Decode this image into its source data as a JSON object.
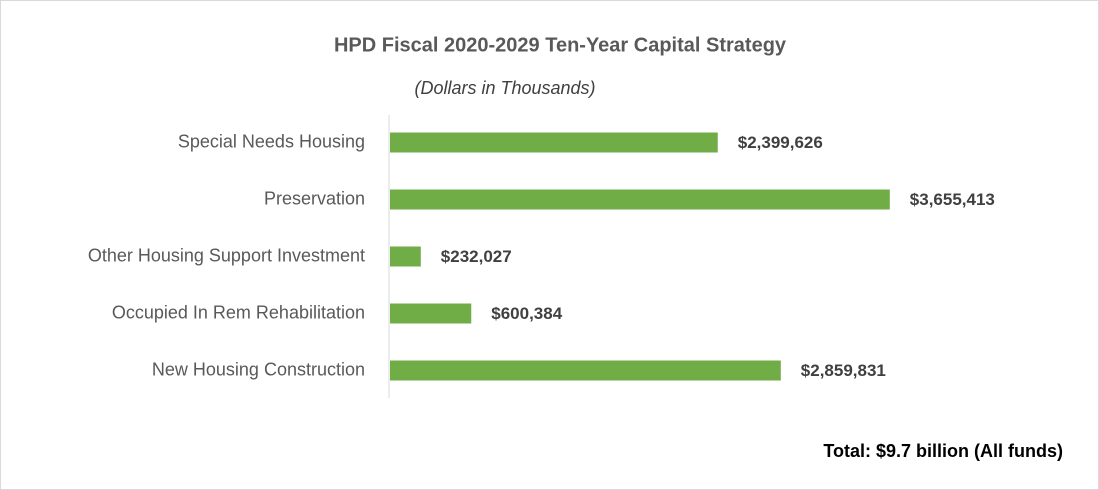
{
  "chart_data": {
    "type": "bar",
    "orientation": "horizontal",
    "title": "HPD Fiscal 2020-2029 Ten-Year Capital Strategy",
    "subtitle": "(Dollars in Thousands)",
    "annotation": "Total: $9.7 billion (All funds)",
    "categories": [
      "Special Needs Housing",
      "Preservation",
      "Other Housing Support Investment",
      "Occupied In Rem Rehabilitation",
      "New Housing Construction"
    ],
    "values": [
      2399626,
      3655413,
      232027,
      600384,
      2859831
    ],
    "value_labels": [
      "$2,399,626",
      "$3,655,413",
      "$232,027",
      "$600,384",
      "$2,859,831"
    ],
    "color": "#70ad47",
    "xlim": [
      0,
      4000000
    ]
  }
}
